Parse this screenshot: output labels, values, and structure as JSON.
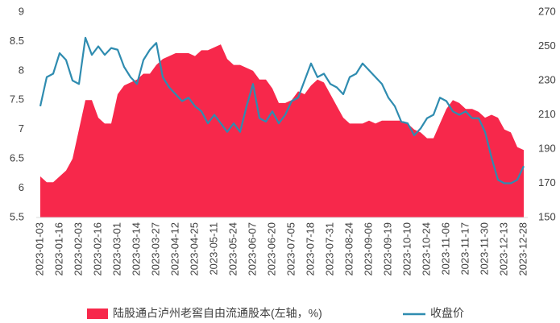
{
  "chart_data": {
    "type": "combo",
    "categories": [
      "2023-01-03",
      null,
      null,
      "2023-01-16",
      null,
      null,
      "2023-02-03",
      null,
      null,
      "2023-02-16",
      null,
      null,
      "2023-03-01",
      null,
      null,
      "2023-03-14",
      null,
      null,
      "2023-03-27",
      null,
      null,
      "2023-04-12",
      null,
      null,
      "2023-04-25",
      null,
      null,
      "2023-05-11",
      null,
      null,
      "2023-05-24",
      null,
      null,
      "2023-06-07",
      null,
      null,
      "2023-06-20",
      null,
      null,
      "2023-07-05",
      null,
      null,
      "2023-07-18",
      null,
      null,
      "2023-07-31",
      null,
      null,
      "2023-08-24",
      null,
      null,
      "2023-09-06",
      null,
      null,
      "2023-09-19",
      null,
      null,
      "2023-10-10",
      null,
      null,
      "2023-10-24",
      null,
      null,
      "2023-11-06",
      null,
      null,
      "2023-11-17",
      null,
      null,
      "2023-11-30",
      null,
      null,
      "2023-12-13",
      null,
      null,
      "2023-12-28"
    ],
    "series": [
      {
        "name": "陆股通占泸州老窖自由流通股本(左轴，%)",
        "type": "area",
        "color": "#f7284b",
        "values": [
          6.2,
          6.1,
          6.1,
          6.2,
          6.3,
          6.5,
          7.0,
          7.5,
          7.5,
          7.2,
          7.1,
          7.1,
          7.6,
          7.75,
          7.8,
          7.85,
          7.95,
          7.95,
          8.1,
          8.2,
          8.25,
          8.3,
          8.3,
          8.3,
          8.25,
          8.35,
          8.35,
          8.4,
          8.45,
          8.2,
          8.1,
          8.1,
          8.05,
          8.0,
          7.85,
          7.85,
          7.7,
          7.45,
          7.45,
          7.5,
          7.65,
          7.6,
          7.75,
          7.85,
          7.8,
          7.6,
          7.4,
          7.2,
          7.1,
          7.1,
          7.1,
          7.15,
          7.1,
          7.15,
          7.15,
          7.15,
          7.15,
          7.1,
          7.0,
          6.95,
          6.85,
          6.85,
          7.1,
          7.35,
          7.5,
          7.45,
          7.35,
          7.35,
          7.3,
          7.2,
          7.25,
          7.2,
          7.0,
          6.95,
          6.7,
          6.65
        ]
      },
      {
        "name": "收盘价",
        "type": "line",
        "axis": "y2",
        "color": "#2f8cb0",
        "values": [
          215,
          232,
          234,
          246,
          242,
          230,
          228,
          255,
          245,
          250,
          245,
          249,
          248,
          238,
          232,
          228,
          242,
          248,
          252,
          232,
          226,
          222,
          218,
          220,
          215,
          212,
          205,
          210,
          205,
          200,
          205,
          200,
          215,
          228,
          208,
          206,
          212,
          205,
          210,
          218,
          220,
          230,
          240,
          232,
          234,
          228,
          226,
          222,
          232,
          234,
          240,
          236,
          232,
          228,
          220,
          215,
          206,
          205,
          198,
          202,
          208,
          210,
          220,
          218,
          212,
          210,
          212,
          208,
          208,
          200,
          185,
          172,
          170,
          170,
          172,
          180
        ]
      }
    ],
    "ylim": [
      5.5,
      9
    ],
    "yticks": [
      5.5,
      6,
      6.5,
      7,
      7.5,
      8,
      8.5,
      9
    ],
    "y2lim": [
      150,
      270
    ],
    "y2ticks": [
      150,
      170,
      190,
      210,
      230,
      250,
      270
    ],
    "grid": false
  }
}
